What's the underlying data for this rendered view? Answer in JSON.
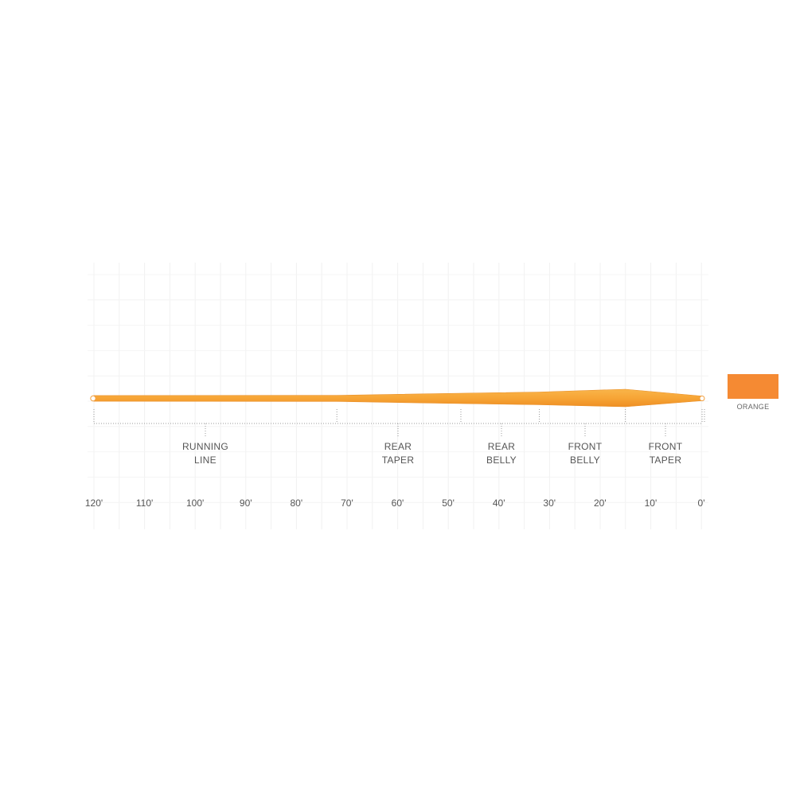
{
  "axis": {
    "ticks": [
      "120'",
      "110'",
      "100'",
      "90'",
      "80'",
      "70'",
      "60'",
      "50'",
      "40'",
      "30'",
      "20'",
      "10'",
      "0'"
    ],
    "range_ft": [
      120,
      0
    ]
  },
  "segments": [
    {
      "line1": "RUNNING",
      "line2": "LINE",
      "from_ft": 120,
      "to_ft": 72
    },
    {
      "line1": "REAR",
      "line2": "TAPER",
      "from_ft": 72,
      "to_ft": 47.5
    },
    {
      "line1": "REAR",
      "line2": "BELLY",
      "from_ft": 47.5,
      "to_ft": 32
    },
    {
      "line1": "FRONT",
      "line2": "BELLY",
      "from_ft": 32,
      "to_ft": 15
    },
    {
      "line1": "FRONT",
      "line2": "TAPER",
      "from_ft": 15,
      "to_ft": 0
    }
  ],
  "swatch": {
    "label": "ORANGE",
    "color": "#f58a33"
  },
  "line_color": "#f7a536"
}
